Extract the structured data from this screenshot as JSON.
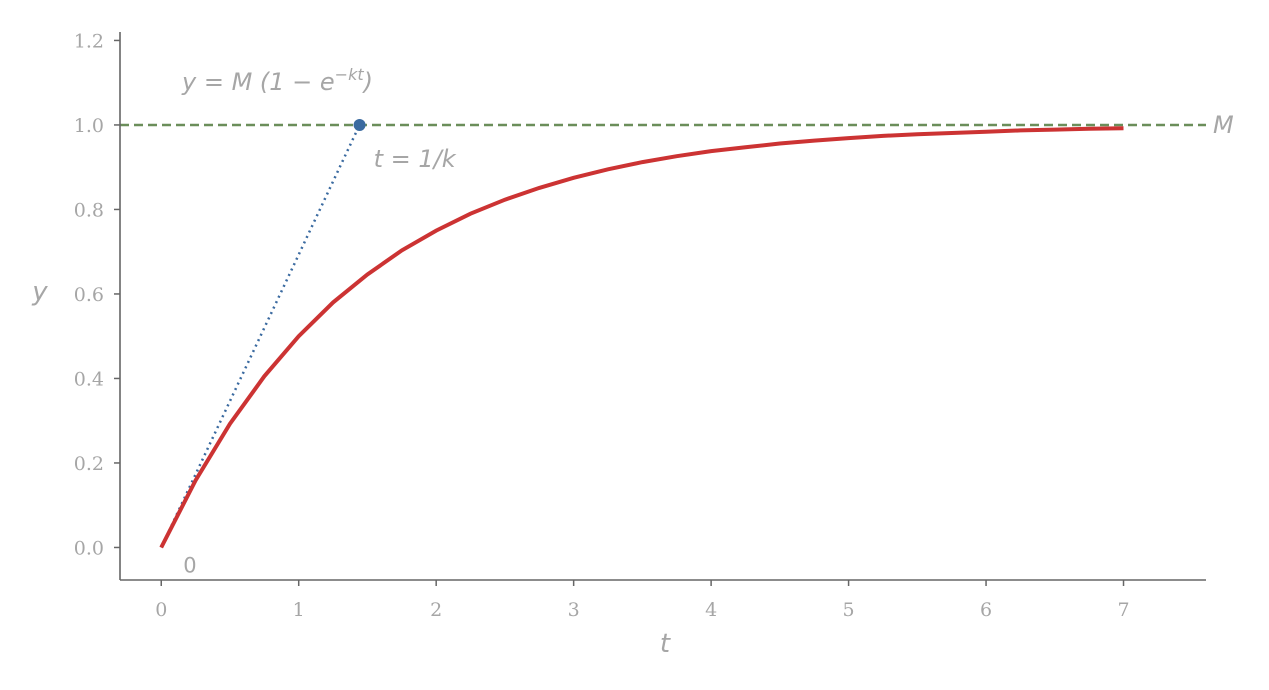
{
  "chart_data": {
    "type": "line",
    "x": [
      0,
      0.25,
      0.5,
      0.75,
      1,
      1.25,
      1.5,
      1.75,
      2,
      2.25,
      2.5,
      2.75,
      3,
      3.25,
      3.5,
      3.75,
      4,
      4.25,
      4.5,
      4.75,
      5,
      5.25,
      5.5,
      5.75,
      6,
      6.25,
      6.5,
      6.75,
      7
    ],
    "series": [
      {
        "values": [
          0,
          0.159,
          0.293,
          0.405,
          0.5,
          0.58,
          0.646,
          0.703,
          0.75,
          0.79,
          0.823,
          0.851,
          0.875,
          0.895,
          0.912,
          0.926,
          0.938,
          0.947,
          0.956,
          0.963,
          0.969,
          0.974,
          0.978,
          0.981,
          0.984,
          0.987,
          0.989,
          0.991,
          0.992
        ],
        "color": "#cc3333"
      }
    ],
    "asymptote": {
      "y": 1.0,
      "label": "M",
      "color": "#6b8e5a"
    },
    "tangent": {
      "from": [
        0,
        0
      ],
      "to": [
        1.4427,
        1.0
      ],
      "color": "#3a6aa0"
    },
    "marker": {
      "x": 1.4427,
      "y": 1.0,
      "label": "t = 1/k",
      "color": "#3a6aa0"
    },
    "origin_label": "0",
    "formula": {
      "lhs": "y = M (1 − e",
      "exp": "−kt",
      "rhs": ")"
    },
    "xlabel": "t",
    "ylabel": "y",
    "xlim": [
      -0.3,
      7.6
    ],
    "ylim": [
      -0.077,
      1.22
    ],
    "xticks": [
      0,
      1,
      2,
      3,
      4,
      5,
      6,
      7
    ],
    "yticks": [
      "0.0",
      "0.2",
      "0.4",
      "0.6",
      "0.8",
      "1.0",
      "1.2"
    ],
    "grid": false
  }
}
